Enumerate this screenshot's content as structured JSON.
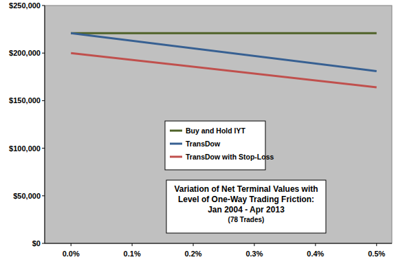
{
  "chart_data": {
    "type": "line",
    "title": [
      "Variation of Net Terminal Values with",
      "Level of One-Way Trading Friction:",
      "Jan 2004 - Apr 2013"
    ],
    "subtitle": "(78 Trades)",
    "x": [
      0,
      0.5
    ],
    "xlim": [
      -0.043,
      0.525
    ],
    "xticks": [
      {
        "value": 0,
        "label": "0.0%"
      },
      {
        "value": 0.1,
        "label": "0.1%"
      },
      {
        "value": 0.2,
        "label": "0.2%"
      },
      {
        "value": 0.3,
        "label": "0.3%"
      },
      {
        "value": 0.4,
        "label": "0.4%"
      },
      {
        "value": 0.5,
        "label": "0.5%"
      }
    ],
    "ylim": [
      0,
      250000
    ],
    "yticks": [
      {
        "value": 0,
        "label": "$0"
      },
      {
        "value": 50000,
        "label": "$50,000"
      },
      {
        "value": 100000,
        "label": "$100,000"
      },
      {
        "value": 150000,
        "label": "$150,000"
      },
      {
        "value": 200000,
        "label": "$200,000"
      },
      {
        "value": 250000,
        "label": "$250,000"
      }
    ],
    "grid": false,
    "legend": "center",
    "series": [
      {
        "name": "Buy and Hold IYT",
        "color": "#4f6228",
        "values": [
          221000,
          221000
        ]
      },
      {
        "name": "TransDow",
        "color": "#376092",
        "values": [
          221000,
          181000
        ]
      },
      {
        "name": "TransDow with Stop-Loss",
        "color": "#c0504d",
        "values": [
          200000,
          164000
        ]
      }
    ]
  }
}
